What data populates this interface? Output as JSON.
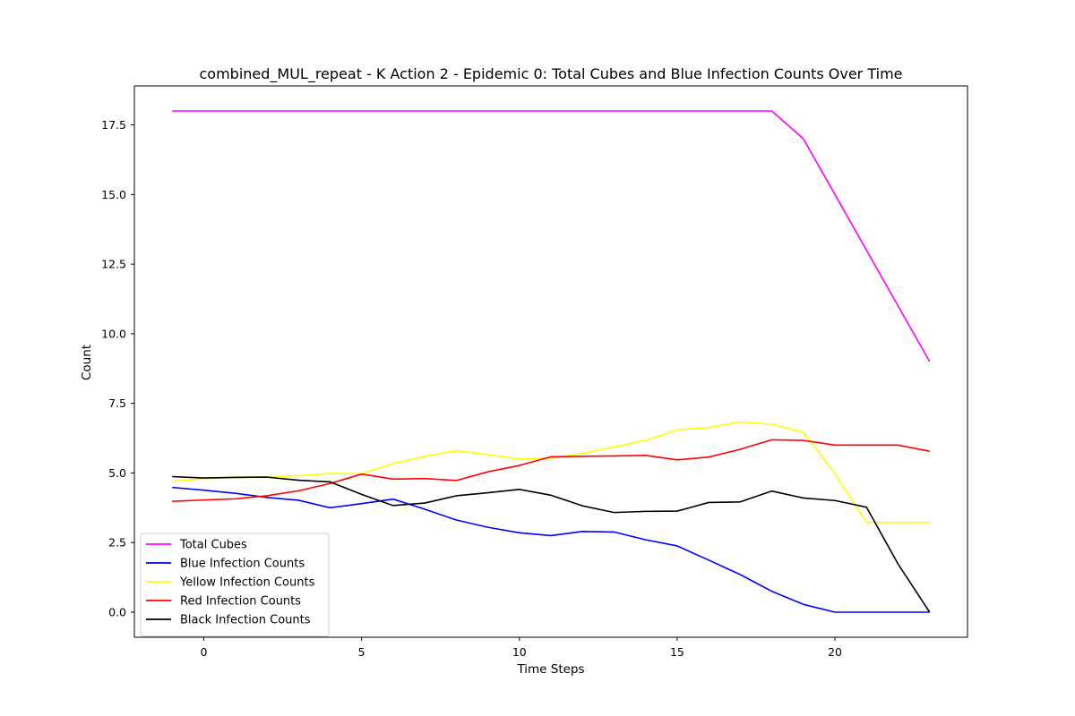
{
  "chart_data": {
    "type": "line",
    "title": "combined_MUL_repeat - K Action 2 - Epidemic 0: Total Cubes and Blue Infection Counts Over Time",
    "xlabel": "Time Steps",
    "ylabel": "Count",
    "xlim": [
      -2.2,
      24.2
    ],
    "ylim": [
      -0.9,
      18.9
    ],
    "xticks": [
      0,
      5,
      10,
      15,
      20
    ],
    "xtick_labels": [
      "0",
      "5",
      "10",
      "15",
      "20"
    ],
    "yticks": [
      0,
      2.5,
      5,
      7.5,
      10,
      12.5,
      15,
      17.5
    ],
    "ytick_labels": [
      "0.0",
      "2.5",
      "5.0",
      "7.5",
      "10.0",
      "12.5",
      "15.0",
      "17.5"
    ],
    "grid": false,
    "legend_position": "lower-left",
    "x": [
      -1,
      0,
      1,
      2,
      3,
      4,
      5,
      6,
      7,
      8,
      9,
      10,
      11,
      12,
      13,
      14,
      15,
      16,
      17,
      18,
      19,
      20,
      21,
      22,
      23
    ],
    "series": [
      {
        "name": "Total Cubes",
        "color": "#ff00ff",
        "values": [
          18,
          18,
          18,
          18,
          18,
          18,
          18,
          18,
          18,
          18,
          18,
          18,
          18,
          18,
          18,
          18,
          18,
          18,
          18,
          18,
          17,
          15,
          13,
          11,
          9
        ]
      },
      {
        "name": "Blue Infection Counts",
        "color": "#0000ff",
        "values": [
          4.48,
          4.38,
          4.27,
          4.12,
          4.02,
          3.75,
          3.9,
          4.06,
          3.7,
          3.31,
          3.05,
          2.85,
          2.75,
          2.9,
          2.88,
          2.6,
          2.38,
          1.87,
          1.35,
          0.75,
          0.28,
          0.0,
          0.0,
          0.0,
          0.0
        ]
      },
      {
        "name": "Yellow Infection Counts",
        "color": "#ffff00",
        "values": [
          4.7,
          4.8,
          4.85,
          4.86,
          4.9,
          4.98,
          4.97,
          5.34,
          5.59,
          5.8,
          5.66,
          5.5,
          5.53,
          5.7,
          5.94,
          6.17,
          6.55,
          6.63,
          6.83,
          6.75,
          6.46,
          4.97,
          3.22,
          3.22,
          3.22
        ]
      },
      {
        "name": "Red Infection Counts",
        "color": "#ff0000",
        "values": [
          3.98,
          4.03,
          4.07,
          4.18,
          4.36,
          4.62,
          4.96,
          4.78,
          4.8,
          4.73,
          5.04,
          5.27,
          5.58,
          5.6,
          5.61,
          5.63,
          5.47,
          5.57,
          5.85,
          6.19,
          6.17,
          6.0,
          6.0,
          6.0,
          5.78
        ]
      },
      {
        "name": "Black Infection Counts",
        "color": "#000000",
        "values": [
          4.87,
          4.82,
          4.84,
          4.85,
          4.74,
          4.68,
          4.23,
          3.83,
          3.92,
          4.18,
          4.29,
          4.41,
          4.2,
          3.82,
          3.58,
          3.62,
          3.63,
          3.94,
          3.96,
          4.35,
          4.1,
          4.01,
          3.77,
          1.73,
          0.0
        ]
      }
    ]
  }
}
